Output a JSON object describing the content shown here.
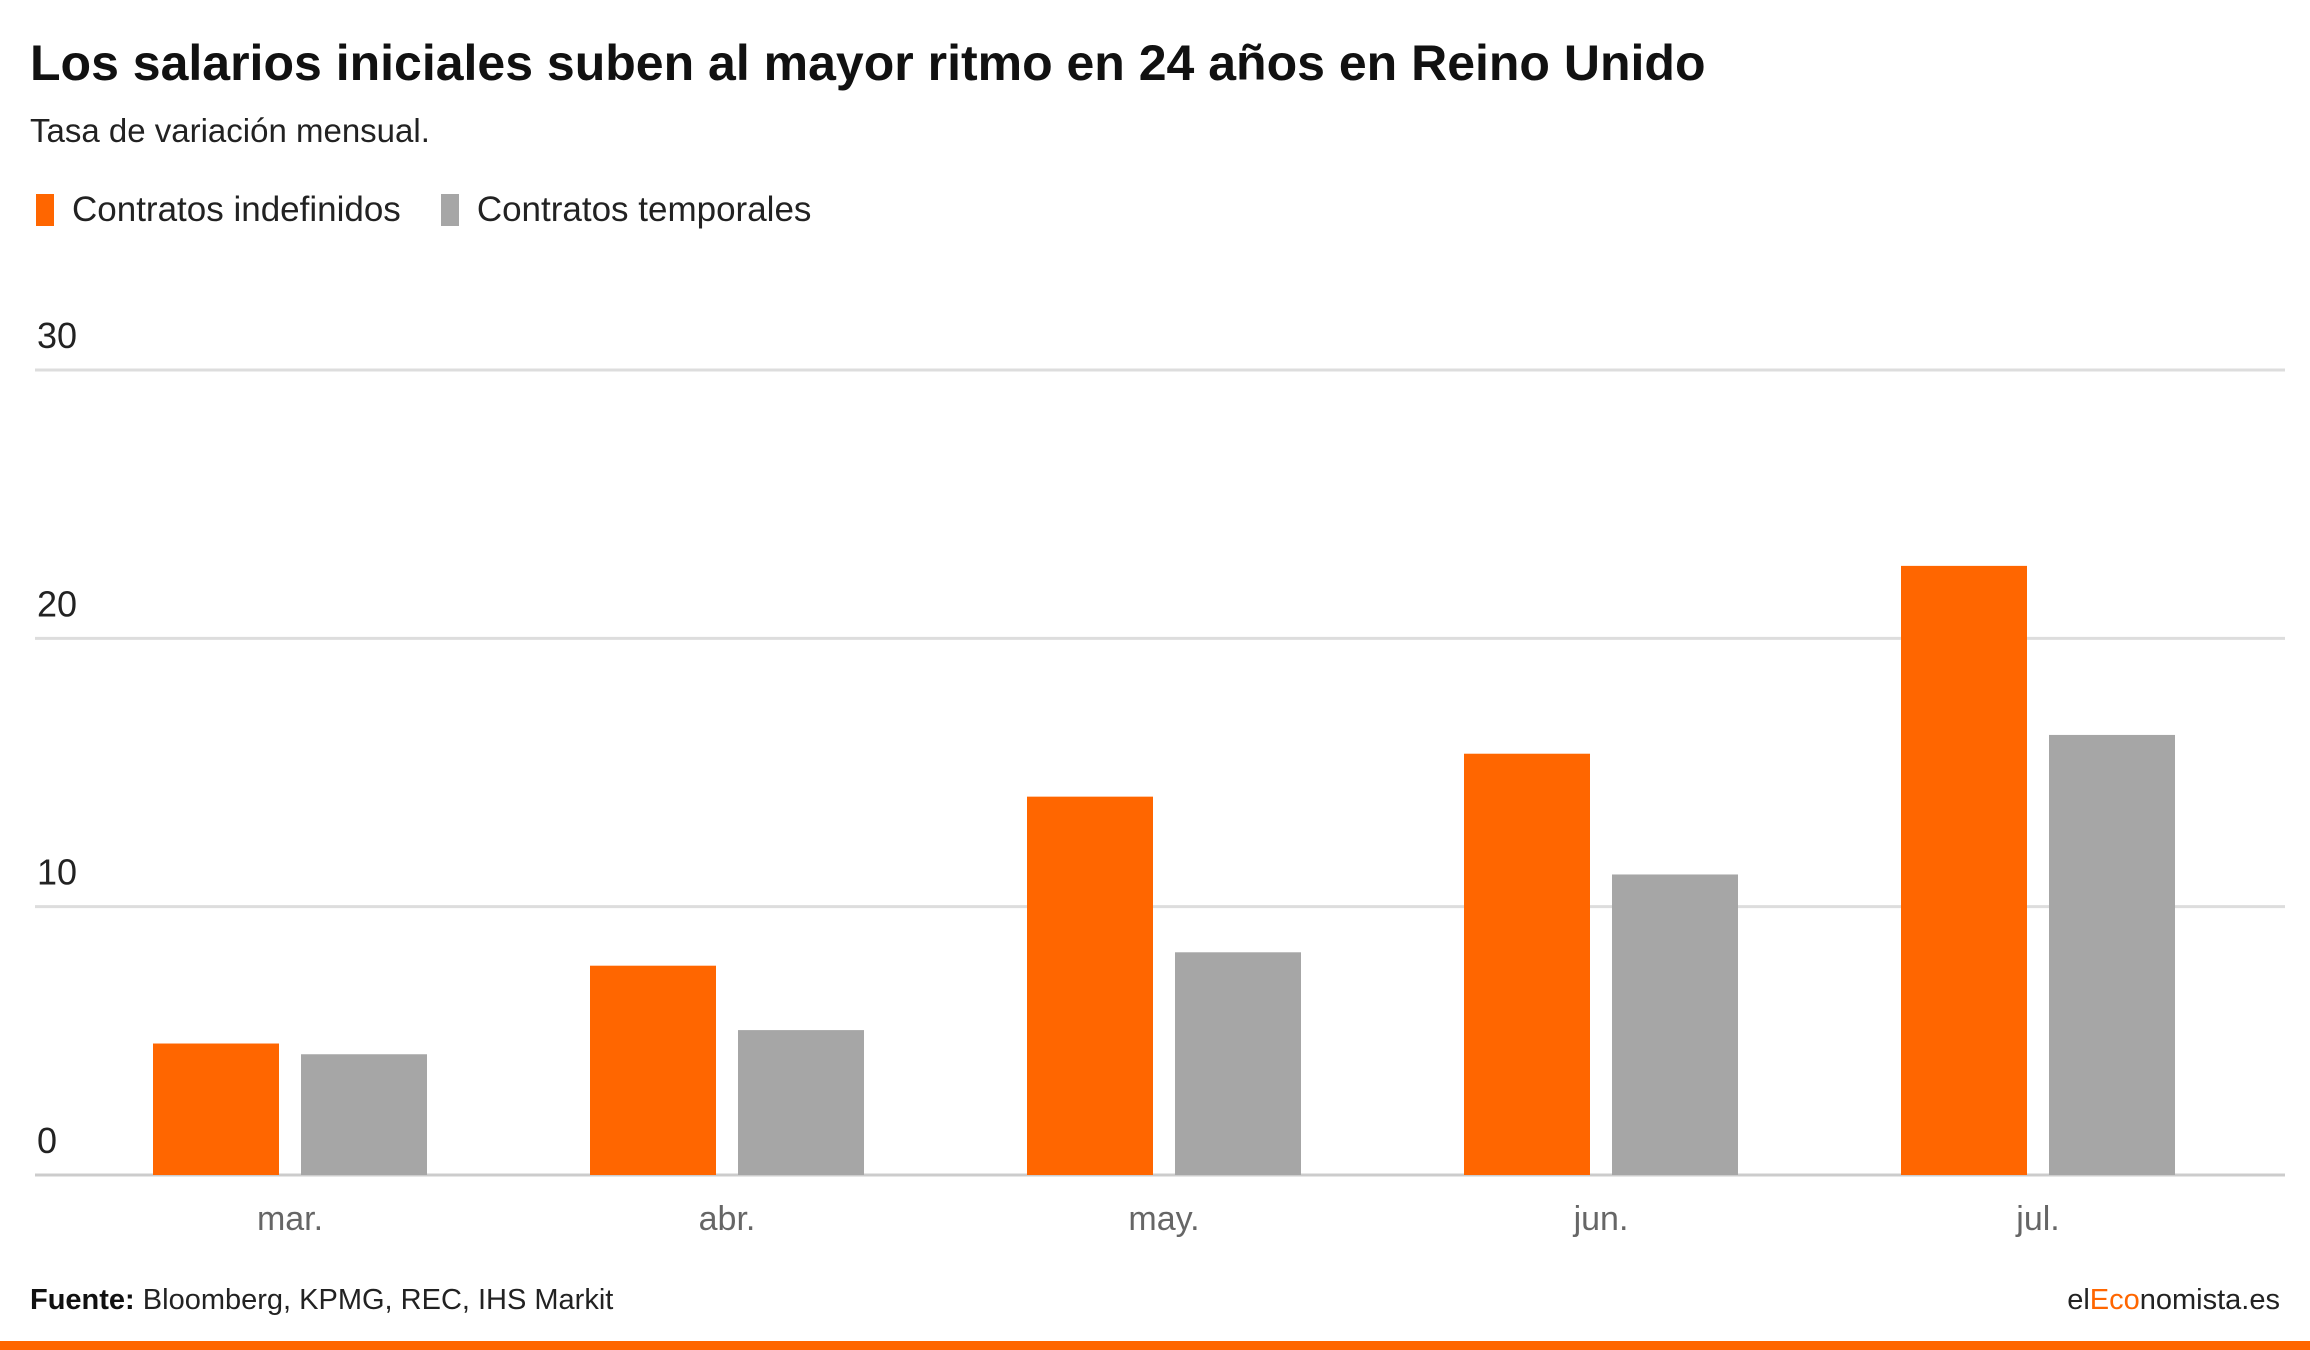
{
  "header": {
    "title": "Los salarios iniciales suben al mayor ritmo en 24 años en Reino Unido",
    "subtitle": "Tasa de variación mensual."
  },
  "legend": {
    "items": [
      {
        "label": "Contratos indefinidos",
        "color": "#ff6600"
      },
      {
        "label": "Contratos temporales",
        "color": "#a6a6a6"
      }
    ]
  },
  "chart_data": {
    "type": "bar",
    "title": "Los salarios iniciales suben al mayor ritmo en 24 años en Reino Unido",
    "subtitle": "Tasa de variación mensual.",
    "xlabel": "",
    "ylabel": "",
    "categories": [
      "mar.",
      "abr.",
      "may.",
      "jun.",
      "jul."
    ],
    "series": [
      {
        "name": "Contratos indefinidos",
        "color": "#ff6600",
        "values": [
          4.9,
          7.8,
          14.1,
          15.7,
          22.7
        ]
      },
      {
        "name": "Contratos temporales",
        "color": "#a6a6a6",
        "values": [
          4.5,
          5.4,
          8.3,
          11.2,
          16.4
        ]
      }
    ],
    "yticks": [
      "0",
      "10",
      "20",
      "30"
    ],
    "ylim": [
      0,
      30
    ],
    "grid": true,
    "legend_position": "top-left"
  },
  "footer": {
    "source_label": "Fuente:",
    "source_text": "Bloomberg, KPMG, REC, IHS Markit",
    "brand_prefix": "el",
    "brand_accent": "Eco",
    "brand_suffix": "nomista.es"
  },
  "colors": {
    "accent": "#ff6600",
    "secondary": "#a6a6a6",
    "grid": "#dddddd"
  }
}
